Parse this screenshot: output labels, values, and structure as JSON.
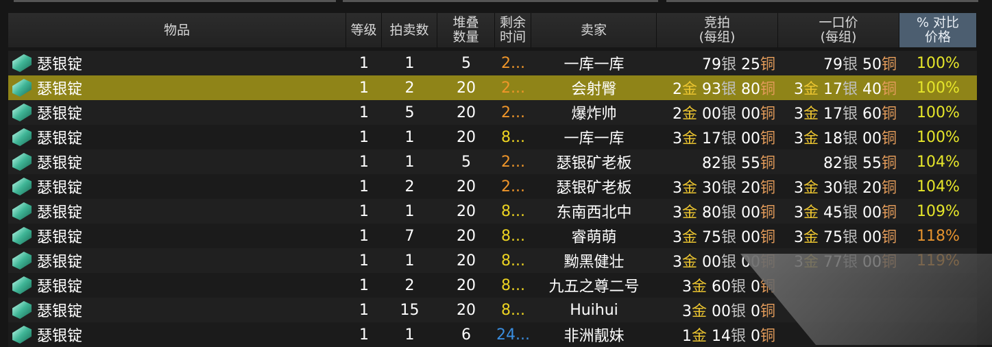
{
  "headers": [
    "物品",
    "等级",
    "拍卖数",
    "堆叠\n数量",
    "剩余\n时间",
    "卖家",
    "竞拍\n(每组)",
    "一口价\n(每组)",
    "% 对比\n价格"
  ],
  "units": {
    "gold": "金",
    "silver": "银",
    "copper": "铜"
  },
  "colors": {
    "time_orange": "#f0962a",
    "time_yellow": "#ecd321",
    "time_blue": "#3a8ee0",
    "pct_yellow": "#e6e62a",
    "pct_orange": "#e6932e",
    "highlight": "#8f8418"
  },
  "rows": [
    {
      "item": "瑟银锭",
      "level": "1",
      "count": "1",
      "stack": "5",
      "time": "2...",
      "time_color": "orange",
      "seller": "一库一库",
      "bid": [
        "",
        "79",
        "25"
      ],
      "buyout": [
        "",
        "79",
        "50"
      ],
      "pct": "100%",
      "pct_color": "yellow"
    },
    {
      "item": "瑟银锭",
      "level": "1",
      "count": "2",
      "stack": "20",
      "time": "2...",
      "time_color": "orange",
      "seller": "会射臀",
      "bid": [
        "2",
        "93",
        "80"
      ],
      "buyout": [
        "3",
        "17",
        "40"
      ],
      "pct": "100%",
      "pct_color": "yellow",
      "selected": true
    },
    {
      "item": "瑟银锭",
      "level": "1",
      "count": "5",
      "stack": "20",
      "time": "2...",
      "time_color": "orange",
      "seller": "爆炸帅",
      "bid": [
        "2",
        "00",
        "00"
      ],
      "buyout": [
        "3",
        "17",
        "60"
      ],
      "pct": "100%",
      "pct_color": "yellow"
    },
    {
      "item": "瑟银锭",
      "level": "1",
      "count": "1",
      "stack": "20",
      "time": "8...",
      "time_color": "yellow",
      "seller": "一库一库",
      "bid": [
        "3",
        "17",
        "00"
      ],
      "buyout": [
        "3",
        "18",
        "00"
      ],
      "pct": "100%",
      "pct_color": "yellow"
    },
    {
      "item": "瑟银锭",
      "level": "1",
      "count": "1",
      "stack": "5",
      "time": "2...",
      "time_color": "orange",
      "seller": "瑟银矿老板",
      "bid": [
        "",
        "82",
        "55"
      ],
      "buyout": [
        "",
        "82",
        "55"
      ],
      "pct": "104%",
      "pct_color": "yellow"
    },
    {
      "item": "瑟银锭",
      "level": "1",
      "count": "2",
      "stack": "20",
      "time": "2...",
      "time_color": "orange",
      "seller": "瑟银矿老板",
      "bid": [
        "3",
        "30",
        "20"
      ],
      "buyout": [
        "3",
        "30",
        "20"
      ],
      "pct": "104%",
      "pct_color": "yellow"
    },
    {
      "item": "瑟银锭",
      "level": "1",
      "count": "1",
      "stack": "20",
      "time": "8...",
      "time_color": "yellow",
      "seller": "东南西北中",
      "bid": [
        "3",
        "80",
        "00"
      ],
      "buyout": [
        "3",
        "45",
        "00"
      ],
      "pct": "109%",
      "pct_color": "yellow"
    },
    {
      "item": "瑟银锭",
      "level": "1",
      "count": "7",
      "stack": "20",
      "time": "8...",
      "time_color": "yellow",
      "seller": "睿萌萌",
      "bid": [
        "3",
        "75",
        "00"
      ],
      "buyout": [
        "3",
        "75",
        "00"
      ],
      "pct": "118%",
      "pct_color": "orange"
    },
    {
      "item": "瑟银锭",
      "level": "1",
      "count": "1",
      "stack": "20",
      "time": "8...",
      "time_color": "yellow",
      "seller": "黝黑健壮",
      "bid": [
        "3",
        "00",
        "00"
      ],
      "buyout": [
        "3",
        "77",
        "00"
      ],
      "pct": "119%",
      "pct_color": "orange"
    },
    {
      "item": "瑟银锭",
      "level": "1",
      "count": "2",
      "stack": "20",
      "time": "8...",
      "time_color": "yellow",
      "seller": "九五之尊二号",
      "bid": [
        "3",
        "60",
        "0"
      ],
      "buyout": null,
      "pct": "",
      "pct_color": "orange"
    },
    {
      "item": "瑟银锭",
      "level": "1",
      "count": "15",
      "stack": "20",
      "time": "8...",
      "time_color": "yellow",
      "seller": "Huihui",
      "bid": [
        "3",
        "00",
        "0"
      ],
      "buyout": null,
      "pct": "",
      "pct_color": "orange"
    },
    {
      "item": "瑟银锭",
      "level": "1",
      "count": "1",
      "stack": "6",
      "time": "24...",
      "time_color": "blue",
      "seller": "非洲靓妹",
      "bid": [
        "1",
        "14",
        "0"
      ],
      "buyout": null,
      "pct": "",
      "pct_color": "orange"
    }
  ]
}
